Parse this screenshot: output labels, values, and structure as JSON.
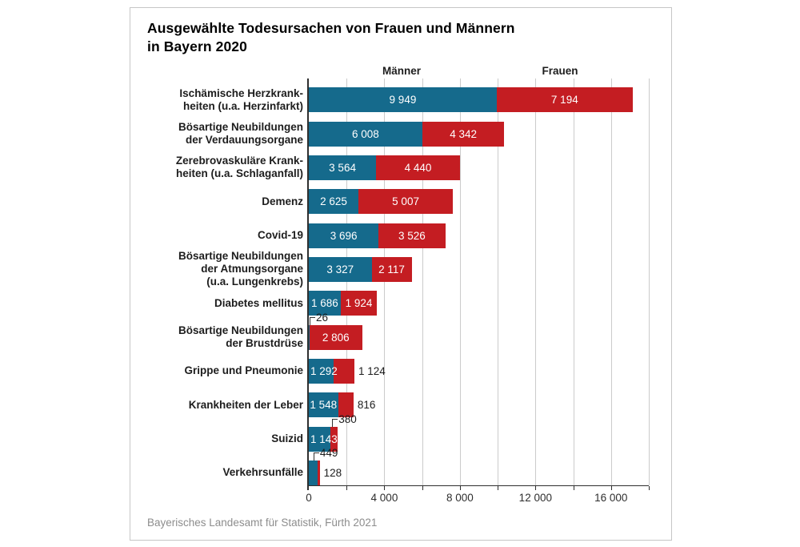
{
  "title": "Ausgewählte Todesursachen von Frauen und Männern\nin Bayern 2020",
  "column_headers": {
    "men": "Männer",
    "women": "Frauen"
  },
  "source": "Bayerisches Landesamt für Statistik, Fürth 2021",
  "chart_data": {
    "type": "bar",
    "orientation": "horizontal",
    "stacked": true,
    "title": "Ausgewählte Todesursachen von Frauen und Männern in Bayern 2020",
    "series_names": [
      "Männer",
      "Frauen"
    ],
    "colors": {
      "men": "#156a8c",
      "women": "#c41d22",
      "gridline": "#cbcbcb",
      "axis": "#2f2f2f"
    },
    "xlim": [
      0,
      18000
    ],
    "gridline_step": 2000,
    "grid": true,
    "legend_position": "top",
    "x_ticks": [
      {
        "value": 0,
        "label": "0"
      },
      {
        "value": 4000,
        "label": "4 000"
      },
      {
        "value": 8000,
        "label": "8 000"
      },
      {
        "value": 12000,
        "label": "12 000"
      },
      {
        "value": 16000,
        "label": "16 000"
      }
    ],
    "rows": [
      {
        "category": "Ischämische Herzkrank-\nheiten (u.a. Herzinfarkt)",
        "men": 9949,
        "women": 7194,
        "men_label": "9 949",
        "women_label": "7 194",
        "men_label_pos": "inside",
        "women_label_pos": "inside"
      },
      {
        "category": "Bösartige Neubildungen\nder Verdauungsorgane",
        "men": 6008,
        "women": 4342,
        "men_label": "6 008",
        "women_label": "4 342",
        "men_label_pos": "inside",
        "women_label_pos": "inside"
      },
      {
        "category": "Zerebrovaskuläre Krank-\nheiten (u.a. Schlaganfall)",
        "men": 3564,
        "women": 4440,
        "men_label": "3 564",
        "women_label": "4 440",
        "men_label_pos": "inside",
        "women_label_pos": "inside"
      },
      {
        "category": "Demenz",
        "men": 2625,
        "women": 5007,
        "men_label": "2 625",
        "women_label": "5 007",
        "men_label_pos": "inside",
        "women_label_pos": "inside"
      },
      {
        "category": "Covid-19",
        "men": 3696,
        "women": 3526,
        "men_label": "3 696",
        "women_label": "3 526",
        "men_label_pos": "inside",
        "women_label_pos": "inside"
      },
      {
        "category": "Bösartige Neubildungen\nder Atmungsorgane\n(u.a. Lungenkrebs)",
        "men": 3327,
        "women": 2117,
        "men_label": "3 327",
        "women_label": "2 117",
        "men_label_pos": "inside",
        "women_label_pos": "inside"
      },
      {
        "category": "Diabetes mellitus",
        "men": 1686,
        "women": 1924,
        "men_label": "1 686",
        "women_label": "1 924",
        "men_label_pos": "inside",
        "women_label_pos": "inside"
      },
      {
        "category": "Bösartige Neubildungen\nder Brustdrüse",
        "men": 26,
        "women": 2806,
        "men_label": "26",
        "women_label": "2 806",
        "men_label_pos": "callout",
        "women_label_pos": "inside"
      },
      {
        "category": "Grippe und Pneumonie",
        "men": 1292,
        "women": 1124,
        "men_label": "1 292",
        "women_label": "1 124",
        "men_label_pos": "inside",
        "women_label_pos": "right"
      },
      {
        "category": "Krankheiten der Leber",
        "men": 1548,
        "women": 816,
        "men_label": "1 548",
        "women_label": "816",
        "men_label_pos": "inside",
        "women_label_pos": "right"
      },
      {
        "category": "Suizid",
        "men": 1143,
        "women": 380,
        "men_label": "1 143",
        "women_label": "380",
        "men_label_pos": "inside",
        "women_label_pos": "callout"
      },
      {
        "category": "Verkehrsunfälle",
        "men": 449,
        "women": 128,
        "men_label": "449",
        "women_label": "128",
        "men_label_pos": "callout",
        "women_label_pos": "right"
      }
    ]
  }
}
